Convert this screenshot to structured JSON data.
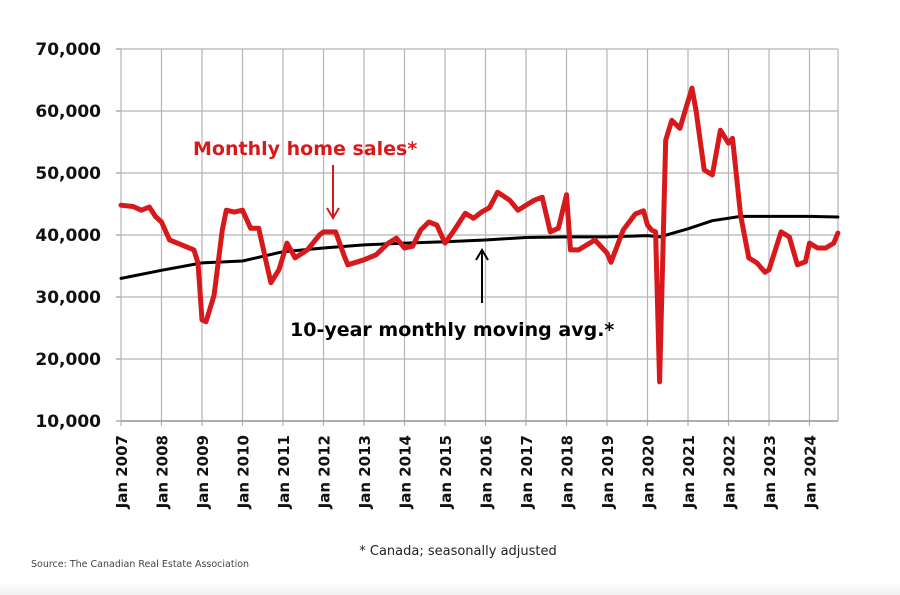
{
  "chart_data": {
    "type": "line",
    "title": "",
    "xlabel": "",
    "ylabel": "",
    "ylim": [
      10000,
      70000
    ],
    "yticks": [
      10000,
      20000,
      30000,
      40000,
      50000,
      60000,
      70000
    ],
    "ytick_labels": [
      "10,000",
      "20,000",
      "30,000",
      "40,000",
      "50,000",
      "60,000",
      "70,000"
    ],
    "xlim": [
      2007.0,
      2024.7
    ],
    "xtick_labels": [
      "Jan 2007",
      "Jan 2008",
      "Jan 2009",
      "Jan 2010",
      "Jan 2011",
      "Jan 2012",
      "Jan 2013",
      "Jan 2014",
      "Jan 2015",
      "Jan 2016",
      "Jan 2017",
      "Jan 2018",
      "Jan 2019",
      "Jan 2020",
      "Jan 2021",
      "Jan 2022",
      "Jan 2023",
      "Jan 2024"
    ],
    "grid": true,
    "series": [
      {
        "name": "Monthly home sales*",
        "color": "#d7191c",
        "x": [
          2007.0,
          2007.3,
          2007.5,
          2007.7,
          2007.85,
          2008.0,
          2008.2,
          2008.5,
          2008.8,
          2008.9,
          2009.0,
          2009.1,
          2009.3,
          2009.5,
          2009.6,
          2009.8,
          2010.0,
          2010.2,
          2010.4,
          2010.6,
          2010.7,
          2010.9,
          2011.1,
          2011.3,
          2011.6,
          2011.9,
          2012.0,
          2012.3,
          2012.5,
          2012.6,
          2012.8,
          2013.0,
          2013.3,
          2013.6,
          2013.8,
          2014.0,
          2014.2,
          2014.4,
          2014.6,
          2014.8,
          2015.0,
          2015.2,
          2015.5,
          2015.7,
          2015.9,
          2016.1,
          2016.3,
          2016.6,
          2016.8,
          2017.0,
          2017.2,
          2017.4,
          2017.6,
          2017.8,
          2018.0,
          2018.1,
          2018.3,
          2018.5,
          2018.7,
          2019.0,
          2019.1,
          2019.4,
          2019.7,
          2019.9,
          2020.0,
          2020.1,
          2020.2,
          2020.3,
          2020.45,
          2020.6,
          2020.8,
          2020.95,
          2021.1,
          2021.2,
          2021.4,
          2021.6,
          2021.8,
          2022.0,
          2022.1,
          2022.3,
          2022.5,
          2022.7,
          2022.9,
          2023.0,
          2023.3,
          2023.5,
          2023.7,
          2023.9,
          2024.0,
          2024.2,
          2024.4,
          2024.6,
          2024.7
        ],
        "values": [
          44800,
          44600,
          44000,
          44500,
          43000,
          42100,
          39200,
          38400,
          37600,
          35500,
          26300,
          26000,
          30300,
          40800,
          44000,
          43700,
          44000,
          41100,
          41100,
          35200,
          32300,
          34400,
          38700,
          36300,
          37600,
          40000,
          40500,
          40500,
          36800,
          35200,
          35600,
          36000,
          36800,
          38700,
          39500,
          37900,
          38200,
          40800,
          42100,
          41600,
          38700,
          40500,
          43500,
          42700,
          43700,
          44400,
          46900,
          45600,
          44000,
          44800,
          45600,
          46100,
          40500,
          41100,
          46500,
          37600,
          37600,
          38400,
          39200,
          37100,
          35600,
          40800,
          43400,
          43900,
          41600,
          40800,
          40500,
          16300,
          55300,
          58500,
          57200,
          60500,
          63700,
          60000,
          50500,
          49700,
          56900,
          54800,
          55600,
          43200,
          36300,
          35500,
          34000,
          34400,
          40500,
          39700,
          35200,
          35700,
          38700,
          37900,
          37900,
          38700,
          40300
        ]
      },
      {
        "name": "10-year monthly moving avg.*",
        "color": "#000000",
        "x": [
          2007.0,
          2008.0,
          2009.0,
          2010.0,
          2011.0,
          2012.0,
          2013.0,
          2014.0,
          2015.0,
          2016.0,
          2017.0,
          2018.0,
          2019.0,
          2020.0,
          2020.3,
          2021.0,
          2021.6,
          2022.3,
          2023.0,
          2024.0,
          2024.7
        ],
        "values": [
          33000,
          34300,
          35500,
          35800,
          37300,
          37900,
          38400,
          38700,
          38900,
          39200,
          39600,
          39700,
          39700,
          39900,
          39700,
          41000,
          42300,
          43000,
          43000,
          43000,
          42900
        ]
      }
    ],
    "annotations": {
      "sales_label": "Monthly home sales*",
      "avg_label": "10-year monthly moving avg.*"
    },
    "footnote": "* Canada; seasonally adjusted",
    "source": "Source: The Canadian Real Estate Association"
  }
}
